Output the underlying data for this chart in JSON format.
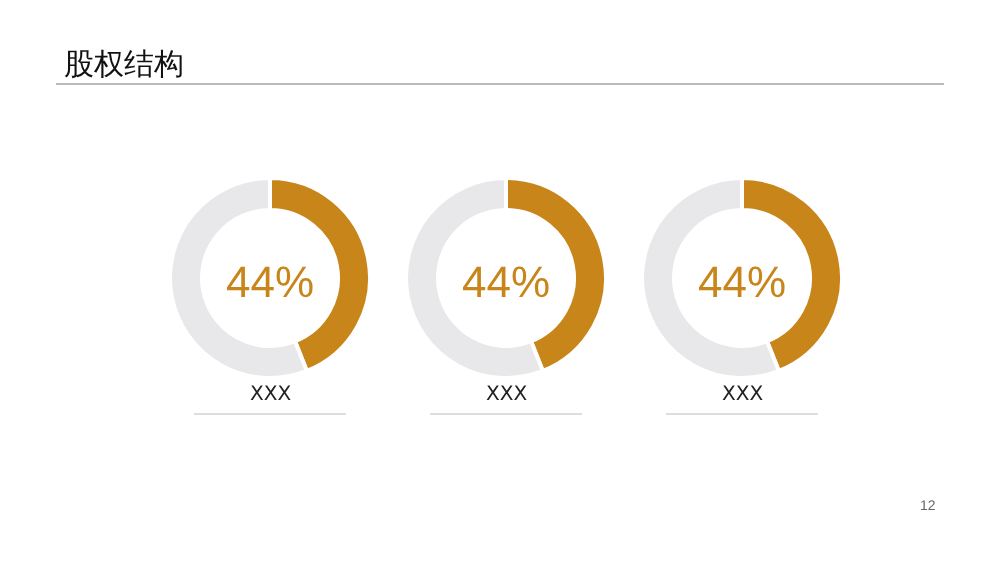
{
  "chart_data": [
    {
      "type": "other",
      "title": "股权结构",
      "annotations": [
        "12"
      ]
    },
    {
      "type": "donut",
      "categories": [
        null,
        null
      ],
      "values": [
        44,
        56
      ],
      "colors": [
        "#c8861a",
        "#e8e8ea"
      ],
      "annotations": [
        "44%",
        "XXX"
      ]
    },
    {
      "type": "donut",
      "categories": [
        null,
        null
      ],
      "values": [
        44,
        56
      ],
      "colors": [
        "#c8861a",
        "#e8e8ea"
      ],
      "annotations": [
        "44%",
        "XXX"
      ]
    },
    {
      "type": "donut",
      "categories": [
        null,
        null
      ],
      "values": [
        44,
        56
      ],
      "colors": [
        "#c8861a",
        "#e8e8ea"
      ],
      "annotations": [
        "44%",
        "XXX"
      ]
    }
  ]
}
